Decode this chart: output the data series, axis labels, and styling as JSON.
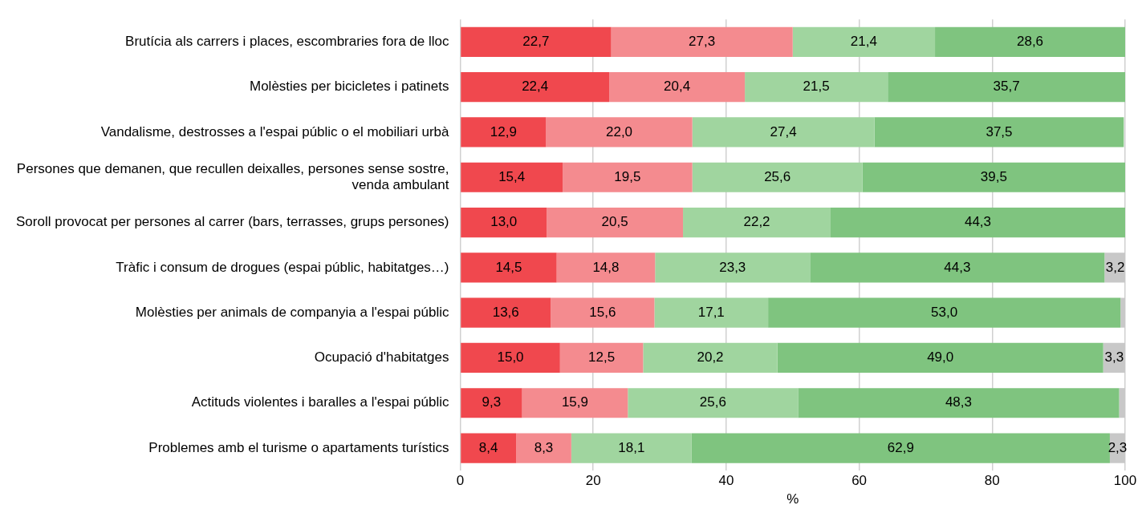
{
  "chart_data": {
    "type": "bar",
    "orientation": "horizontal",
    "stacked": true,
    "xlabel": "%",
    "categories": [
      "Brutícia als carrers i places, escombraries fora de lloc",
      "Molèsties per bicicletes i patinets",
      "Vandalisme, destrosses a l'espai públic o el mobiliari urbà",
      "Persones que demanen, que recullen deixalles, persones sense sostre, venda ambulant",
      "Soroll provocat per persones al carrer (bars, terrasses, grups persones)",
      "Tràfic i consum de drogues (espai públic, habitatges…)",
      "Molèsties per animals de companyia a l'espai públic",
      "Ocupació d'habitatges",
      "Actituds violentes i baralles a l'espai públic",
      "Problemes amb el turisme o apartaments turístics"
    ],
    "series": [
      {
        "color": "#f0484e",
        "values": [
          22.7,
          22.4,
          12.9,
          15.4,
          13.0,
          14.5,
          13.6,
          15.0,
          9.3,
          8.4
        ],
        "value_labels": [
          "22,7",
          "22,4",
          "12,9",
          "15,4",
          "13,0",
          "14,5",
          "13,6",
          "15,0",
          "9,3",
          "8,4"
        ]
      },
      {
        "color": "#f48b8f",
        "values": [
          27.3,
          20.4,
          22.0,
          19.5,
          20.5,
          14.8,
          15.6,
          12.5,
          15.9,
          8.3
        ],
        "value_labels": [
          "27,3",
          "20,4",
          "22,0",
          "19,5",
          "20,5",
          "14,8",
          "15,6",
          "12,5",
          "15,9",
          "8,3"
        ]
      },
      {
        "color": "#a0d59f",
        "values": [
          21.4,
          21.5,
          27.4,
          25.6,
          22.2,
          23.3,
          17.1,
          20.2,
          25.6,
          18.1
        ],
        "value_labels": [
          "21,4",
          "21,5",
          "27,4",
          "25,6",
          "22,2",
          "23,3",
          "17,1",
          "20,2",
          "25,6",
          "18,1"
        ]
      },
      {
        "color": "#7fc47f",
        "values": [
          28.6,
          35.7,
          37.5,
          39.5,
          44.3,
          44.3,
          53.0,
          49.0,
          48.3,
          62.9
        ],
        "value_labels": [
          "28,6",
          "35,7",
          "37,5",
          "39,5",
          "44,3",
          "44,3",
          "53,0",
          "49,0",
          "48,3",
          "62,9"
        ]
      },
      {
        "color": "#c8c8c8",
        "values": [
          null,
          null,
          null,
          null,
          null,
          3.2,
          0.7,
          3.3,
          0.9,
          2.3
        ],
        "value_labels": [
          null,
          null,
          null,
          null,
          null,
          "3,2",
          null,
          "3,3",
          null,
          "2,3"
        ]
      }
    ],
    "xlim": [
      0,
      100
    ],
    "xticks": [
      0,
      20,
      40,
      60,
      80,
      100
    ],
    "grid": "x",
    "legend": false
  }
}
